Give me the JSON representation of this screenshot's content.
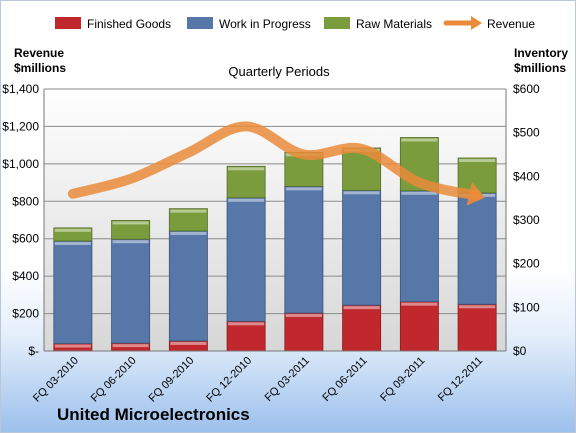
{
  "company": "United Microelectronics",
  "chart_data": {
    "type": "bar",
    "stacked": true,
    "title": "Quarterly Periods",
    "categories": [
      "FQ 03-2010",
      "FQ 06-2010",
      "FQ 09-2010",
      "FQ 12-2010",
      "FQ 03-2011",
      "FQ 06-2011",
      "FQ 09-2011",
      "FQ 12-2011"
    ],
    "ylabel_left": [
      "Revenue",
      "$millions"
    ],
    "ylabel_right": [
      "Inventory",
      "$millions"
    ],
    "yleft_ticks": [
      "$-",
      "$200",
      "$400",
      "$600",
      "$800",
      "$1,000",
      "$1,200",
      "$1,400"
    ],
    "yright_ticks": [
      "$0",
      "$100",
      "$200",
      "$300",
      "$400",
      "$500",
      "$600"
    ],
    "yleft_lim": [
      0,
      1400
    ],
    "yright_lim": [
      0,
      600
    ],
    "grid": true,
    "legend_position": "top",
    "inventory_series": [
      {
        "name": "Finished Goods",
        "color": "#c0282d",
        "axis": "right",
        "values": [
          17,
          18,
          23,
          68,
          87,
          105,
          113,
          107
        ]
      },
      {
        "name": "Work in Progress",
        "color": "#5677a8",
        "axis": "right",
        "values": [
          235,
          238,
          252,
          283,
          290,
          263,
          254,
          255
        ]
      },
      {
        "name": "Raw Materials",
        "color": "#7b9c3c",
        "axis": "right",
        "values": [
          30,
          43,
          51,
          72,
          78,
          97,
          122,
          80
        ]
      }
    ],
    "line_series": {
      "name": "Revenue",
      "color": "#ea8b3a",
      "axis": "left",
      "values": [
        840,
        920,
        1060,
        1200,
        1050,
        1080,
        900,
        830
      ]
    }
  }
}
